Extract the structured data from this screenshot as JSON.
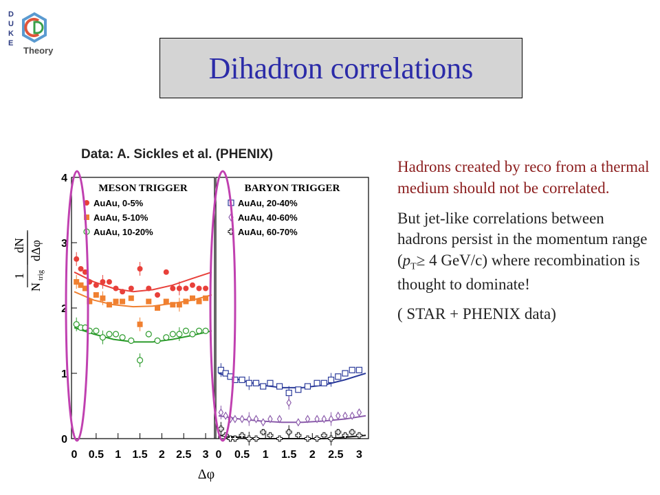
{
  "logo": {
    "letters": [
      "D",
      "U",
      "K",
      "E"
    ],
    "word": "Theory"
  },
  "slide_title": "Dihadron correlations",
  "source_label": "Data: A. Sickles et al. (PHENIX)",
  "text": {
    "para1": "Hadrons created by reco from a thermal medium should not be correlated.",
    "para2_a": "But jet-like correlations between hadrons persist in the momentum range (",
    "para2_p": "p",
    "para2_sub": "T",
    "para2_symbol": "≥",
    "para2_b": " 4 GeV/c) where recombination is thought to dominate!",
    "para3": "( STAR + PHENIX data)"
  },
  "chart_data": {
    "type": "scatter",
    "xlabel": "Δφ",
    "ylabel": "1/N_trig dN/dΔφ",
    "ylim": [
      0,
      4
    ],
    "yticks": [
      "0",
      "1",
      "2",
      "3",
      "4"
    ],
    "panels": [
      {
        "title": "MESON TRIGGER",
        "xlim": [
          0,
          3.14
        ],
        "xticks": [
          "0",
          "0.5",
          "1",
          "1.5",
          "2",
          "2.5",
          "3"
        ],
        "series": [
          {
            "name": "AuAu,   0-5%",
            "color": "#e8403a",
            "marker": "filled-circle",
            "x": [
              0.05,
              0.15,
              0.25,
              0.35,
              0.5,
              0.65,
              0.8,
              0.95,
              1.1,
              1.3,
              1.5,
              1.7,
              1.9,
              2.1,
              2.25,
              2.4,
              2.55,
              2.7,
              2.85,
              3.0
            ],
            "y": [
              2.75,
              2.6,
              2.55,
              2.4,
              2.35,
              2.4,
              2.4,
              2.3,
              2.25,
              2.3,
              2.6,
              2.3,
              2.2,
              2.55,
              2.3,
              2.3,
              2.3,
              2.35,
              2.3,
              2.3
            ],
            "fit": [
              2.55,
              2.4,
              2.3,
              2.25,
              2.28,
              2.35,
              2.45,
              2.55
            ]
          },
          {
            "name": "AuAu,   5-10%",
            "color": "#f08030",
            "marker": "filled-square",
            "x": [
              0.05,
              0.15,
              0.25,
              0.35,
              0.5,
              0.65,
              0.8,
              0.95,
              1.1,
              1.3,
              1.5,
              1.7,
              1.9,
              2.1,
              2.25,
              2.4,
              2.55,
              2.7,
              2.85,
              3.0
            ],
            "y": [
              2.4,
              2.35,
              2.3,
              2.1,
              2.2,
              2.15,
              2.05,
              2.1,
              2.1,
              2.15,
              1.75,
              2.1,
              2.0,
              2.1,
              2.05,
              2.05,
              2.1,
              2.15,
              2.1,
              2.15
            ],
            "fit": [
              2.25,
              2.12,
              2.05,
              2.02,
              2.03,
              2.07,
              2.12,
              2.2
            ]
          },
          {
            "name": "AuAu, 10-20%",
            "color": "#2a9a2a",
            "marker": "open-circle",
            "x": [
              0.05,
              0.15,
              0.25,
              0.35,
              0.5,
              0.65,
              0.8,
              0.95,
              1.1,
              1.3,
              1.5,
              1.7,
              1.9,
              2.1,
              2.25,
              2.4,
              2.55,
              2.7,
              2.85,
              3.0
            ],
            "y": [
              1.75,
              1.7,
              1.7,
              1.65,
              1.65,
              1.55,
              1.6,
              1.6,
              1.55,
              1.5,
              1.2,
              1.6,
              1.5,
              1.55,
              1.6,
              1.6,
              1.65,
              1.6,
              1.65,
              1.65
            ],
            "fit": [
              1.7,
              1.6,
              1.52,
              1.48,
              1.48,
              1.52,
              1.58,
              1.65
            ]
          }
        ]
      },
      {
        "title": "BARYON TRIGGER",
        "xlim": [
          0,
          3.14
        ],
        "xticks": [
          "0",
          "0.5",
          "1",
          "1.5",
          "2",
          "2.5",
          "3"
        ],
        "series": [
          {
            "name": "AuAu, 20-40%",
            "color": "#2a3a9a",
            "marker": "open-square",
            "x": [
              0.05,
              0.15,
              0.25,
              0.35,
              0.5,
              0.65,
              0.8,
              0.95,
              1.1,
              1.3,
              1.5,
              1.7,
              1.9,
              2.1,
              2.25,
              2.4,
              2.55,
              2.7,
              2.85,
              3.0
            ],
            "y": [
              1.05,
              1.0,
              0.95,
              0.9,
              0.9,
              0.85,
              0.85,
              0.8,
              0.85,
              0.8,
              0.7,
              0.75,
              0.8,
              0.85,
              0.85,
              0.9,
              0.95,
              1.0,
              1.05,
              1.05
            ],
            "fit": [
              1.0,
              0.9,
              0.82,
              0.78,
              0.78,
              0.82,
              0.9,
              1.0
            ]
          },
          {
            "name": "AuAu, 40-60%",
            "color": "#8a5aaa",
            "marker": "open-diamond",
            "x": [
              0.05,
              0.15,
              0.25,
              0.35,
              0.5,
              0.65,
              0.8,
              0.95,
              1.1,
              1.3,
              1.5,
              1.7,
              1.9,
              2.1,
              2.25,
              2.4,
              2.55,
              2.7,
              2.85,
              3.0
            ],
            "y": [
              0.4,
              0.35,
              0.3,
              0.3,
              0.3,
              0.3,
              0.3,
              0.25,
              0.3,
              0.3,
              0.55,
              0.25,
              0.3,
              0.3,
              0.3,
              0.3,
              0.35,
              0.35,
              0.35,
              0.4
            ],
            "fit": [
              0.35,
              0.3,
              0.27,
              0.25,
              0.25,
              0.27,
              0.3,
              0.35
            ]
          },
          {
            "name": "AuAu, 60-70%",
            "color": "#111111",
            "marker": "open-cross",
            "x": [
              0.05,
              0.15,
              0.25,
              0.35,
              0.5,
              0.65,
              0.8,
              0.95,
              1.1,
              1.3,
              1.5,
              1.7,
              1.9,
              2.1,
              2.25,
              2.4,
              2.55,
              2.7,
              2.85,
              3.0
            ],
            "y": [
              0.15,
              0.05,
              0.0,
              0.0,
              0.05,
              0.0,
              0.0,
              0.1,
              0.05,
              0.0,
              0.1,
              0.05,
              0.0,
              0.0,
              0.05,
              0.0,
              0.1,
              0.05,
              0.1,
              0.05
            ],
            "fit": [
              0.05,
              0.02,
              0.0,
              0.0,
              0.0,
              0.0,
              0.02,
              0.05
            ]
          }
        ]
      }
    ],
    "highlight": "ellipses near Δφ ≈ 0 in both panels",
    "colors": {
      "highlight": "#c040b0"
    }
  }
}
